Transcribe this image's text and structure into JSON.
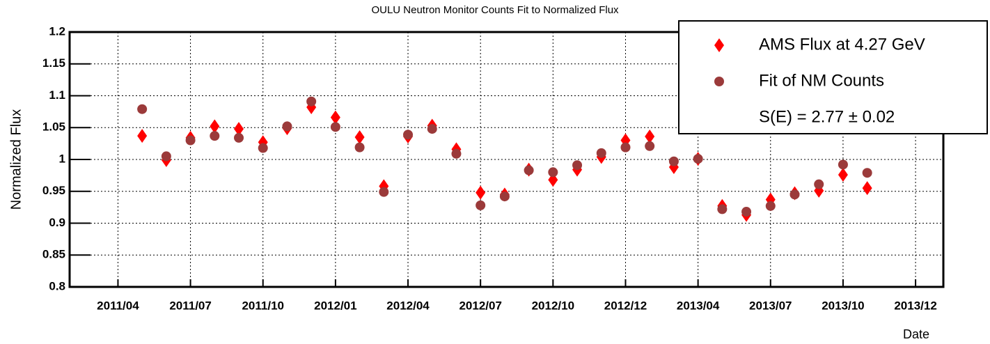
{
  "chart_data": {
    "type": "scatter",
    "title": "OULU Neutron Monitor Counts Fit to Normalized Flux",
    "x_label": "Date",
    "y_label": "Normalized Flux",
    "x": [
      1,
      2,
      3,
      4,
      5,
      6,
      7,
      8,
      9,
      10,
      11,
      12,
      13,
      14,
      15,
      16,
      17,
      18,
      19,
      20,
      21,
      22,
      23,
      24,
      25,
      26,
      27,
      28,
      29,
      30,
      31
    ],
    "series": [
      {
        "name": "AMS Flux at 4.27 GeV",
        "color": "#ff0000",
        "marker": "diamond",
        "values": [
          1.037,
          0.999,
          1.034,
          1.052,
          1.048,
          1.027,
          1.049,
          1.082,
          1.066,
          1.035,
          0.958,
          1.036,
          1.053,
          1.016,
          0.948,
          0.945,
          0.984,
          0.968,
          0.984,
          1.004,
          1.03,
          1.036,
          0.988,
          1.001,
          0.927,
          0.913,
          0.937,
          0.947,
          0.951,
          0.976,
          0.955
        ]
      },
      {
        "name": "Fit of NM Counts",
        "color": "#9b3a3a",
        "marker": "circle",
        "values": [
          1.079,
          1.005,
          1.03,
          1.037,
          1.034,
          1.018,
          1.052,
          1.091,
          1.051,
          1.019,
          0.949,
          1.039,
          1.048,
          1.009,
          0.928,
          0.942,
          0.983,
          0.98,
          0.991,
          1.01,
          1.019,
          1.021,
          0.997,
          1.001,
          0.922,
          0.918,
          0.927,
          0.945,
          0.961,
          0.992,
          0.979
        ]
      }
    ],
    "legend_note": "S(E) = 2.77 ± 0.02",
    "legend": "top-right",
    "xlim": [
      -2,
      34.15
    ],
    "xticks": [
      {
        "value": 0,
        "label": "2011/04"
      },
      {
        "value": 3,
        "label": "2011/07"
      },
      {
        "value": 6,
        "label": "2011/10"
      },
      {
        "value": 9,
        "label": "2012/01"
      },
      {
        "value": 12,
        "label": "2012/04"
      },
      {
        "value": 15,
        "label": "2012/07"
      },
      {
        "value": 18,
        "label": "2012/10"
      },
      {
        "value": 21,
        "label": "2012/12"
      },
      {
        "value": 24,
        "label": "2013/04"
      },
      {
        "value": 27,
        "label": "2013/07"
      },
      {
        "value": 30,
        "label": "2013/10"
      },
      {
        "value": 33,
        "label": "2013/12"
      }
    ],
    "ylim": [
      0.8,
      1.2
    ],
    "yticks": [
      0.8,
      0.85,
      0.9,
      0.95,
      1,
      1.05,
      1.1,
      1.15,
      1.2
    ],
    "grid": true
  }
}
